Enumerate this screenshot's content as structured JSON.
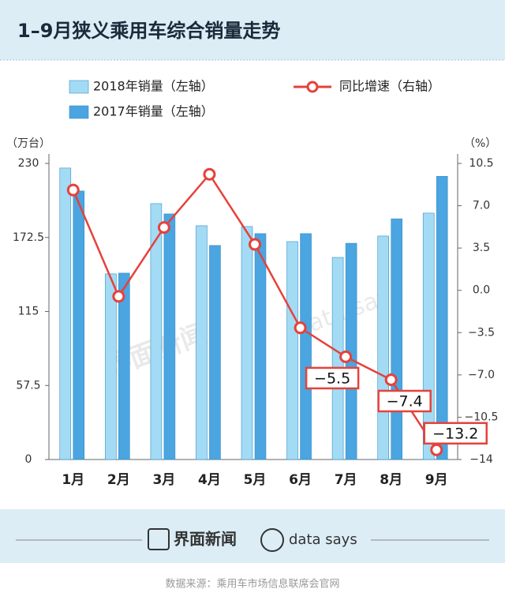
{
  "chart_data": {
    "type": "bar_line",
    "title": "1–9月狭义乘用车综合销量走势",
    "categories": [
      "1月",
      "2月",
      "3月",
      "4月",
      "5月",
      "6月",
      "7月",
      "8月",
      "9月"
    ],
    "series": [
      {
        "name": "2018年销量（左轴）",
        "color": "#a3dbf5",
        "values": [
          226.4,
          144.2,
          198.8,
          181.6,
          181,
          169.3,
          157,
          173.6,
          191.4
        ]
      },
      {
        "name": "2017年销量（左轴）",
        "color": "#4aa5e0",
        "values": [
          208.6,
          144.8,
          190.8,
          166.3,
          175.5,
          175.5,
          168,
          187,
          220
        ]
      },
      {
        "name": "同比增速（右轴）",
        "color": "#e5423b",
        "axis": "y2",
        "type": "line",
        "values": [
          8.3,
          -0.5,
          5.2,
          9.6,
          3.8,
          -3.1,
          -5.5,
          -7.4,
          -13.2
        ],
        "value_labels": [
          null,
          null,
          null,
          null,
          null,
          null,
          "−5.5",
          "−7.4",
          "−13.2"
        ]
      }
    ],
    "ylabel": "（万台）",
    "y2label": "（%）",
    "ylim": [
      0,
      230
    ],
    "yticks": [
      0,
      57.5,
      115,
      172.5,
      230
    ],
    "y2lim": [
      -14,
      10.5
    ],
    "y2ticks": [
      {
        "value": -14,
        "label": "−14"
      },
      {
        "value": -10.5,
        "label": "−10.5"
      },
      {
        "value": -7,
        "label": "−7.0"
      },
      {
        "value": -3.5,
        "label": "−3.5"
      },
      {
        "value": 0,
        "label": "0.0"
      },
      3.5,
      {
        "value": 7,
        "label": "7.0"
      },
      10.5
    ],
    "watermark": [
      "界面新闻",
      "data says"
    ]
  },
  "footer": {
    "brand": "界面新闻",
    "brand2": "data says",
    "source": "数据来源：乘用车市场信息联席会官网"
  }
}
